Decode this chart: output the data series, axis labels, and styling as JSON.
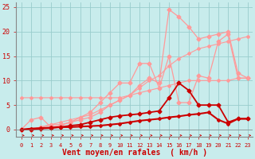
{
  "x": [
    0,
    1,
    2,
    3,
    4,
    5,
    6,
    7,
    8,
    9,
    10,
    11,
    12,
    13,
    14,
    15,
    16,
    17,
    18,
    19,
    20,
    21,
    22,
    23
  ],
  "line_flat_pale": [
    6.5,
    6.5,
    6.5,
    6.5,
    6.5,
    6.5,
    6.5,
    6.5,
    6.5,
    6.5,
    6.5,
    7.0,
    7.5,
    8.0,
    8.5,
    9.0,
    9.5,
    10.0,
    10.0,
    10.0,
    10.0,
    10.0,
    10.5,
    10.5
  ],
  "line_diag_pale": [
    0.0,
    0.0,
    0.5,
    1.0,
    1.5,
    2.0,
    2.5,
    3.0,
    4.0,
    5.0,
    6.0,
    7.0,
    8.5,
    10.0,
    11.0,
    13.0,
    14.5,
    15.5,
    16.5,
    17.0,
    17.5,
    18.0,
    18.5,
    19.0
  ],
  "line_jagged_pale1": [
    0.0,
    2.0,
    2.5,
    0.5,
    0.8,
    1.5,
    2.5,
    3.5,
    5.5,
    7.5,
    9.5,
    9.5,
    13.5,
    13.5,
    8.5,
    15.0,
    5.5,
    5.5,
    11.0,
    10.5,
    18.0,
    19.5,
    10.5,
    10.5
  ],
  "line_jagged_pale2": [
    0.0,
    0.0,
    0.5,
    1.0,
    1.0,
    1.5,
    2.0,
    2.5,
    3.5,
    5.0,
    6.0,
    7.0,
    9.0,
    10.5,
    9.5,
    24.5,
    23.0,
    21.0,
    18.5,
    19.0,
    19.5,
    20.0,
    11.5,
    10.5
  ],
  "line_dark_med": [
    0.0,
    0.0,
    0.2,
    0.3,
    0.5,
    0.8,
    1.0,
    1.5,
    2.0,
    2.5,
    2.8,
    3.0,
    3.2,
    3.5,
    3.8,
    6.5,
    9.5,
    8.0,
    5.0,
    5.0,
    5.0,
    1.5,
    2.2,
    2.2
  ],
  "line_dark_low": [
    0.0,
    0.2,
    0.3,
    0.4,
    0.5,
    0.5,
    0.6,
    0.7,
    0.8,
    1.0,
    1.2,
    1.5,
    1.8,
    2.0,
    2.2,
    2.5,
    2.7,
    3.0,
    3.2,
    3.5,
    2.0,
    1.2,
    2.2,
    2.2
  ],
  "color_pale": "#ff9999",
  "color_dark": "#cc0000",
  "xlabel": "Vent moyen/en rafales  ( km/h )",
  "ylim": [
    0,
    26
  ],
  "xlim": [
    0,
    23
  ],
  "bg_color": "#c8ecec",
  "grid_color": "#99cccc"
}
